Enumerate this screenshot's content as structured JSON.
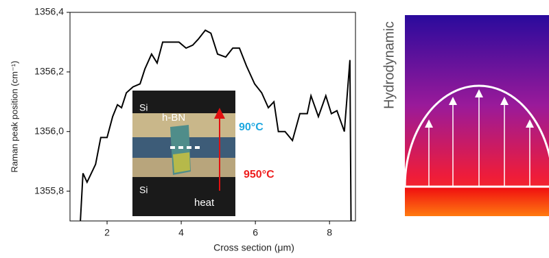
{
  "chart_data": {
    "type": "line",
    "x_label": "Cross section (μm)",
    "y_label": "Raman peak position (cm⁻¹)",
    "x": [
      1.28,
      1.35,
      1.46,
      1.69,
      1.83,
      2.0,
      2.15,
      2.28,
      2.39,
      2.52,
      2.7,
      2.89,
      3.02,
      3.2,
      3.35,
      3.5,
      3.94,
      4.13,
      4.31,
      4.46,
      4.65,
      4.8,
      4.98,
      5.2,
      5.39,
      5.57,
      5.76,
      5.98,
      6.17,
      6.35,
      6.5,
      6.62,
      6.8,
      7.0,
      7.2,
      7.4,
      7.5,
      7.7,
      7.9,
      8.05,
      8.2,
      8.4,
      8.55,
      8.58
    ],
    "series": [
      {
        "color": "#000000",
        "values": [
          1355.7,
          1355.86,
          1355.83,
          1355.89,
          1355.98,
          1355.98,
          1356.05,
          1356.09,
          1356.08,
          1356.13,
          1356.15,
          1356.16,
          1356.21,
          1356.26,
          1356.23,
          1356.3,
          1356.3,
          1356.28,
          1356.29,
          1356.31,
          1356.34,
          1356.33,
          1356.26,
          1356.25,
          1356.28,
          1356.28,
          1356.22,
          1356.16,
          1356.13,
          1356.08,
          1356.1,
          1356.0,
          1356.0,
          1355.97,
          1356.06,
          1356.06,
          1356.12,
          1356.05,
          1356.12,
          1356.06,
          1356.07,
          1356.0,
          1356.24,
          1355.7
        ]
      }
    ],
    "xlim": [
      1.0,
      8.7
    ],
    "xticks": [
      2,
      4,
      6,
      8
    ],
    "ylim": [
      1355.7,
      1356.4
    ],
    "yticks": [
      {
        "value": 1355.8,
        "label": "1355,8"
      },
      {
        "value": 1356.0,
        "label": "1356,0"
      },
      {
        "value": 1356.2,
        "label": "1356,2"
      },
      {
        "value": 1356.4,
        "label": "1356,4"
      }
    ],
    "annotations": [
      {
        "text": "Si",
        "color": "#ffffff"
      },
      {
        "text": "h-BN",
        "color": "#ffffff"
      },
      {
        "text": "Si",
        "color": "#ffffff"
      },
      {
        "text": "heat",
        "color": "#ffffff"
      },
      {
        "text": "90°C",
        "color": "#1fa8e0"
      },
      {
        "text": "950°C",
        "color": "#ee1c1c"
      }
    ]
  },
  "diagram": {
    "label": "Hydrodynamic"
  }
}
